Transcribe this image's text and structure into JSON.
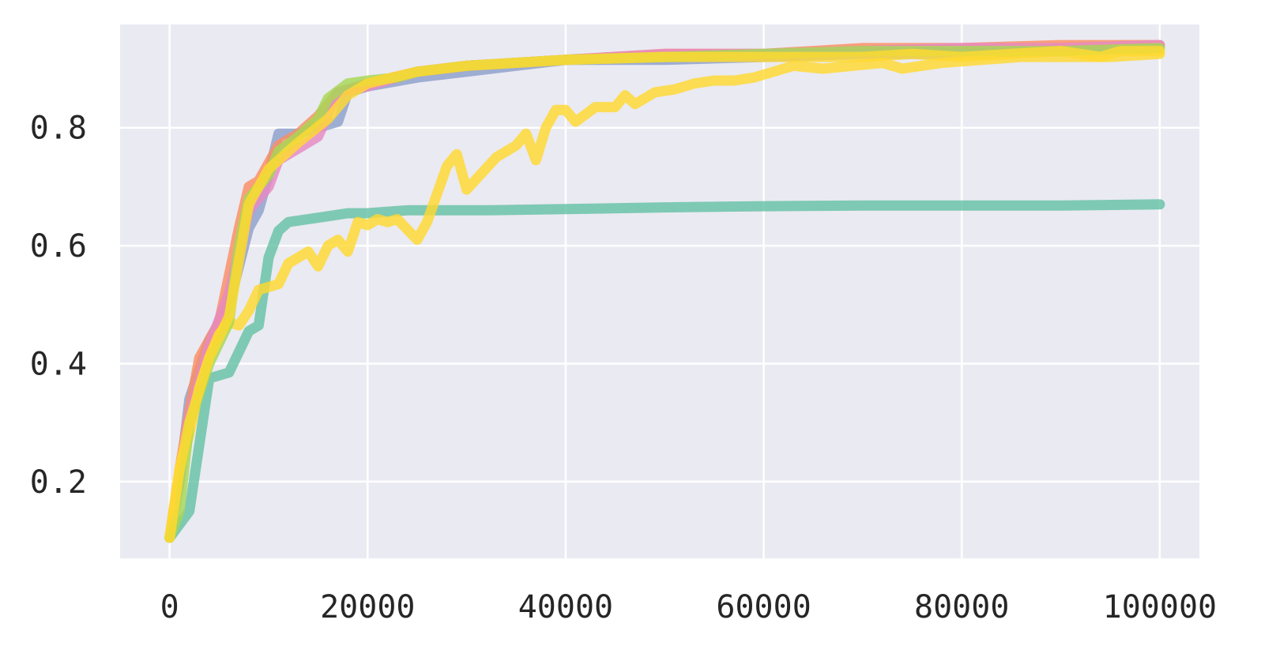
{
  "chart_data": {
    "type": "line",
    "title": "",
    "xlabel": "",
    "ylabel": "",
    "xlim": [
      -5000,
      104000
    ],
    "ylim": [
      0.07,
      0.975
    ],
    "grid": true,
    "background": "#eaeaf2",
    "x_ticks": [
      0,
      20000,
      40000,
      60000,
      80000,
      100000
    ],
    "x_tick_labels": [
      "0",
      "20000",
      "40000",
      "60000",
      "80000",
      "100000"
    ],
    "y_ticks": [
      0.2,
      0.4,
      0.6,
      0.8
    ],
    "y_tick_labels": [
      "0.2",
      "0.4",
      "0.6",
      "0.8"
    ],
    "series": [
      {
        "color": "#8da0cb",
        "x": [
          0,
          1000,
          2000,
          4000,
          6000,
          8000,
          9000,
          10000,
          11000,
          13000,
          15000,
          17000,
          18000,
          20000,
          25000,
          30000,
          40000,
          50000,
          60000,
          70000,
          80000,
          90000,
          100000
        ],
        "y": [
          0.105,
          0.2,
          0.34,
          0.44,
          0.5,
          0.63,
          0.66,
          0.72,
          0.79,
          0.79,
          0.8,
          0.81,
          0.86,
          0.87,
          0.885,
          0.895,
          0.915,
          0.915,
          0.92,
          0.925,
          0.925,
          0.93,
          0.935
        ]
      },
      {
        "color": "#fc8d62",
        "x": [
          0,
          1000,
          2000,
          3000,
          5000,
          7000,
          8000,
          9000,
          11000,
          13000,
          15000,
          17000,
          20000,
          25000,
          30000,
          40000,
          50000,
          60000,
          70000,
          80000,
          90000,
          100000
        ],
        "y": [
          0.105,
          0.22,
          0.32,
          0.41,
          0.47,
          0.63,
          0.7,
          0.71,
          0.77,
          0.79,
          0.82,
          0.86,
          0.875,
          0.895,
          0.905,
          0.915,
          0.925,
          0.925,
          0.935,
          0.935,
          0.94,
          0.94
        ]
      },
      {
        "color": "#e78ac3",
        "x": [
          0,
          1000,
          2000,
          4000,
          6000,
          8000,
          10000,
          11000,
          13000,
          15000,
          17000,
          20000,
          25000,
          30000,
          40000,
          50000,
          60000,
          70000,
          80000,
          90000,
          100000
        ],
        "y": [
          0.105,
          0.21,
          0.31,
          0.43,
          0.52,
          0.66,
          0.7,
          0.745,
          0.765,
          0.785,
          0.86,
          0.87,
          0.895,
          0.905,
          0.915,
          0.925,
          0.925,
          0.93,
          0.935,
          0.935,
          0.94
        ]
      },
      {
        "color": "#66c2a5",
        "x": [
          0,
          2000,
          4000,
          6000,
          8000,
          9000,
          10000,
          11000,
          12000,
          14000,
          16000,
          18000,
          20000,
          24000,
          28000,
          32000,
          40000,
          50000,
          60000,
          70000,
          80000,
          90000,
          100000
        ],
        "y": [
          0.105,
          0.15,
          0.375,
          0.385,
          0.455,
          0.465,
          0.58,
          0.625,
          0.64,
          0.645,
          0.65,
          0.655,
          0.655,
          0.66,
          0.66,
          0.66,
          0.662,
          0.665,
          0.667,
          0.668,
          0.668,
          0.668,
          0.67
        ]
      },
      {
        "color": "#ffd92f",
        "x": [
          0,
          1000,
          2000,
          3000,
          4000,
          5000,
          6000,
          7000,
          8000,
          9000,
          10000,
          11000,
          12000,
          13000,
          14000,
          15000,
          16000,
          17000,
          18000,
          19000,
          20000,
          21000,
          22000,
          23000,
          25000,
          26000,
          28000,
          29000,
          30000,
          33000,
          35000,
          36000,
          37000,
          38000,
          39000,
          40000,
          41000,
          43000,
          45000,
          46000,
          47000,
          49000,
          51000,
          53000,
          55000,
          57000,
          59000,
          61000,
          63000,
          66000,
          69000,
          72000,
          74000,
          78000,
          82000,
          86000,
          90000,
          95000,
          100000
        ],
        "y": [
          0.105,
          0.22,
          0.28,
          0.36,
          0.41,
          0.45,
          0.47,
          0.465,
          0.49,
          0.525,
          0.53,
          0.535,
          0.57,
          0.58,
          0.59,
          0.565,
          0.6,
          0.61,
          0.59,
          0.64,
          0.635,
          0.645,
          0.64,
          0.645,
          0.61,
          0.64,
          0.735,
          0.755,
          0.695,
          0.75,
          0.77,
          0.79,
          0.745,
          0.8,
          0.83,
          0.83,
          0.81,
          0.835,
          0.835,
          0.855,
          0.84,
          0.86,
          0.865,
          0.875,
          0.88,
          0.88,
          0.885,
          0.895,
          0.905,
          0.9,
          0.905,
          0.91,
          0.9,
          0.91,
          0.915,
          0.92,
          0.92,
          0.92,
          0.925
        ]
      },
      {
        "color": "#a6d854",
        "x": [
          0,
          1000,
          2000,
          4000,
          6000,
          7000,
          8000,
          10000,
          11000,
          13000,
          15000,
          16000,
          18000,
          20000,
          23000,
          25000,
          30000,
          40000,
          50000,
          60000,
          70000,
          80000,
          90000,
          100000
        ],
        "y": [
          0.105,
          0.15,
          0.3,
          0.4,
          0.47,
          0.6,
          0.68,
          0.72,
          0.76,
          0.785,
          0.815,
          0.85,
          0.875,
          0.88,
          0.885,
          0.895,
          0.905,
          0.915,
          0.92,
          0.925,
          0.93,
          0.93,
          0.93,
          0.935
        ]
      },
      {
        "color": "#ffd92f",
        "x": [
          0,
          1000,
          2000,
          4000,
          6000,
          8000,
          10000,
          13000,
          16000,
          18000,
          20000,
          25000,
          30000,
          40000,
          50000,
          60000,
          70000,
          75000,
          80000,
          85000,
          90000,
          94000,
          96000,
          100000
        ],
        "y": [
          0.105,
          0.22,
          0.3,
          0.41,
          0.48,
          0.67,
          0.73,
          0.775,
          0.815,
          0.855,
          0.875,
          0.895,
          0.905,
          0.915,
          0.92,
          0.92,
          0.92,
          0.925,
          0.92,
          0.925,
          0.93,
          0.92,
          0.93,
          0.93
        ]
      }
    ]
  }
}
